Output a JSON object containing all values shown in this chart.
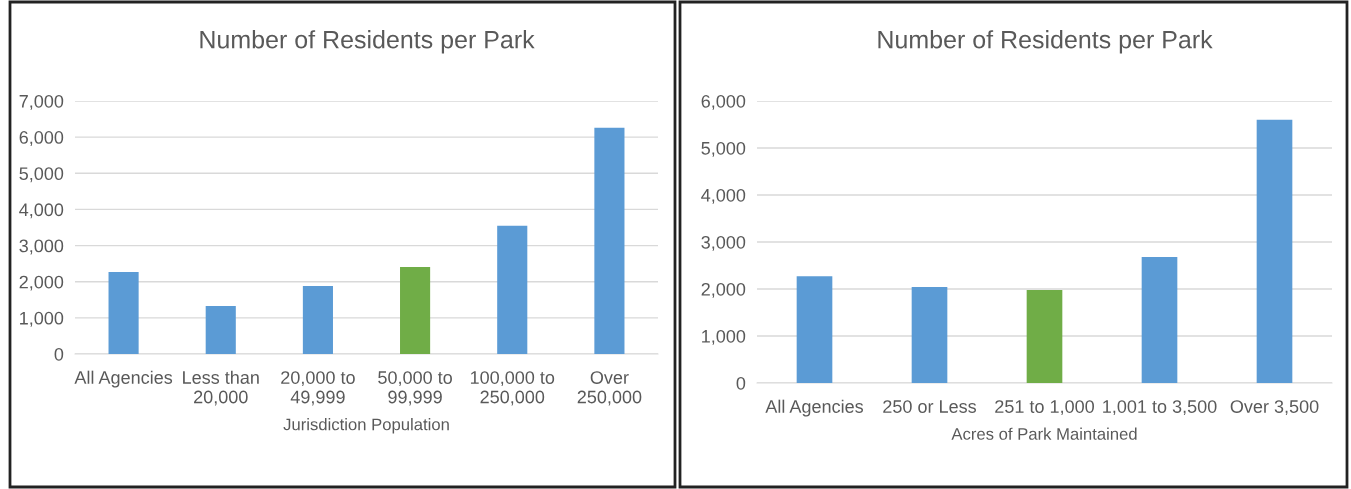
{
  "chart_data": [
    {
      "type": "bar",
      "title": "Number of Residents per Park",
      "xlabel": "Jurisdiction Population",
      "categories": [
        "All Agencies",
        "Less than\n20,000",
        "20,000 to\n49,999",
        "50,000 to\n99,999",
        "100,000 to\n250,000",
        "Over\n250,000"
      ],
      "values": [
        2270,
        1330,
        1880,
        2410,
        3550,
        6260
      ],
      "colors": [
        "#5b9bd5",
        "#5b9bd5",
        "#5b9bd5",
        "#70ad47",
        "#5b9bd5",
        "#5b9bd5"
      ],
      "ylim": [
        0,
        7000
      ],
      "yticks": [
        {
          "value": 0,
          "label": "0"
        },
        {
          "value": 1000,
          "label": "1,000"
        },
        {
          "value": 2000,
          "label": "2,000"
        },
        {
          "value": 3000,
          "label": "3,000"
        },
        {
          "value": 4000,
          "label": "4,000"
        },
        {
          "value": 5000,
          "label": "5,000"
        },
        {
          "value": 6000,
          "label": "6,000"
        },
        {
          "value": 7000,
          "label": "7,000"
        }
      ],
      "grid": "y",
      "legend": false
    },
    {
      "type": "bar",
      "title": "Number of Residents per Park",
      "xlabel": "Acres of Park Maintained",
      "categories": [
        "All Agencies",
        "250 or Less",
        "251 to 1,000",
        "1,001 to 3,500",
        "Over 3,500"
      ],
      "values": [
        2270,
        2040,
        1980,
        2680,
        5600
      ],
      "colors": [
        "#5b9bd5",
        "#5b9bd5",
        "#70ad47",
        "#5b9bd5",
        "#5b9bd5"
      ],
      "ylim": [
        0,
        6000
      ],
      "yticks": [
        {
          "value": 0,
          "label": "0"
        },
        {
          "value": 1000,
          "label": "1,000"
        },
        {
          "value": 2000,
          "label": "2,000"
        },
        {
          "value": 3000,
          "label": "3,000"
        },
        {
          "value": 4000,
          "label": "4,000"
        },
        {
          "value": 5000,
          "label": "5,000"
        },
        {
          "value": 6000,
          "label": "6,000"
        }
      ],
      "grid": "y",
      "legend": false
    }
  ]
}
